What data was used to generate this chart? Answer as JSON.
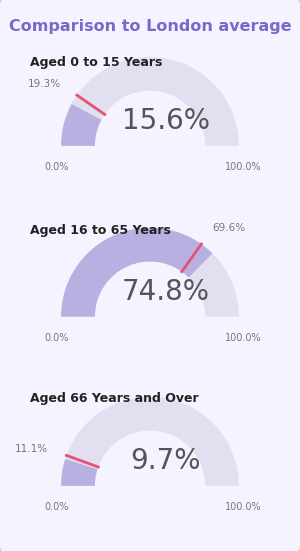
{
  "title": "Comparison to London average",
  "title_color": "#7B68C8",
  "background_color": "#ffffff",
  "border_color": "#c8c0e8",
  "groups": [
    {
      "label": "Aged 0 to 15 Years",
      "borough_pct": 15.6,
      "london_pct": 19.3,
      "center_text": "15.6%"
    },
    {
      "label": "Aged 16 to 65 Years",
      "borough_pct": 74.8,
      "london_pct": 69.6,
      "center_text": "74.8%"
    },
    {
      "label": "Aged 66 Years and Over",
      "borough_pct": 9.7,
      "london_pct": 11.1,
      "center_text": "9.7%"
    }
  ],
  "arc_color_bg": "#e2dff0",
  "arc_color_borough": "#b8b0e0",
  "arc_color_london": "#e8507a",
  "label_color": "#777777",
  "center_text_color": "#555555",
  "group_label_color": "#222222",
  "fig_bg": "#f5f3ff"
}
